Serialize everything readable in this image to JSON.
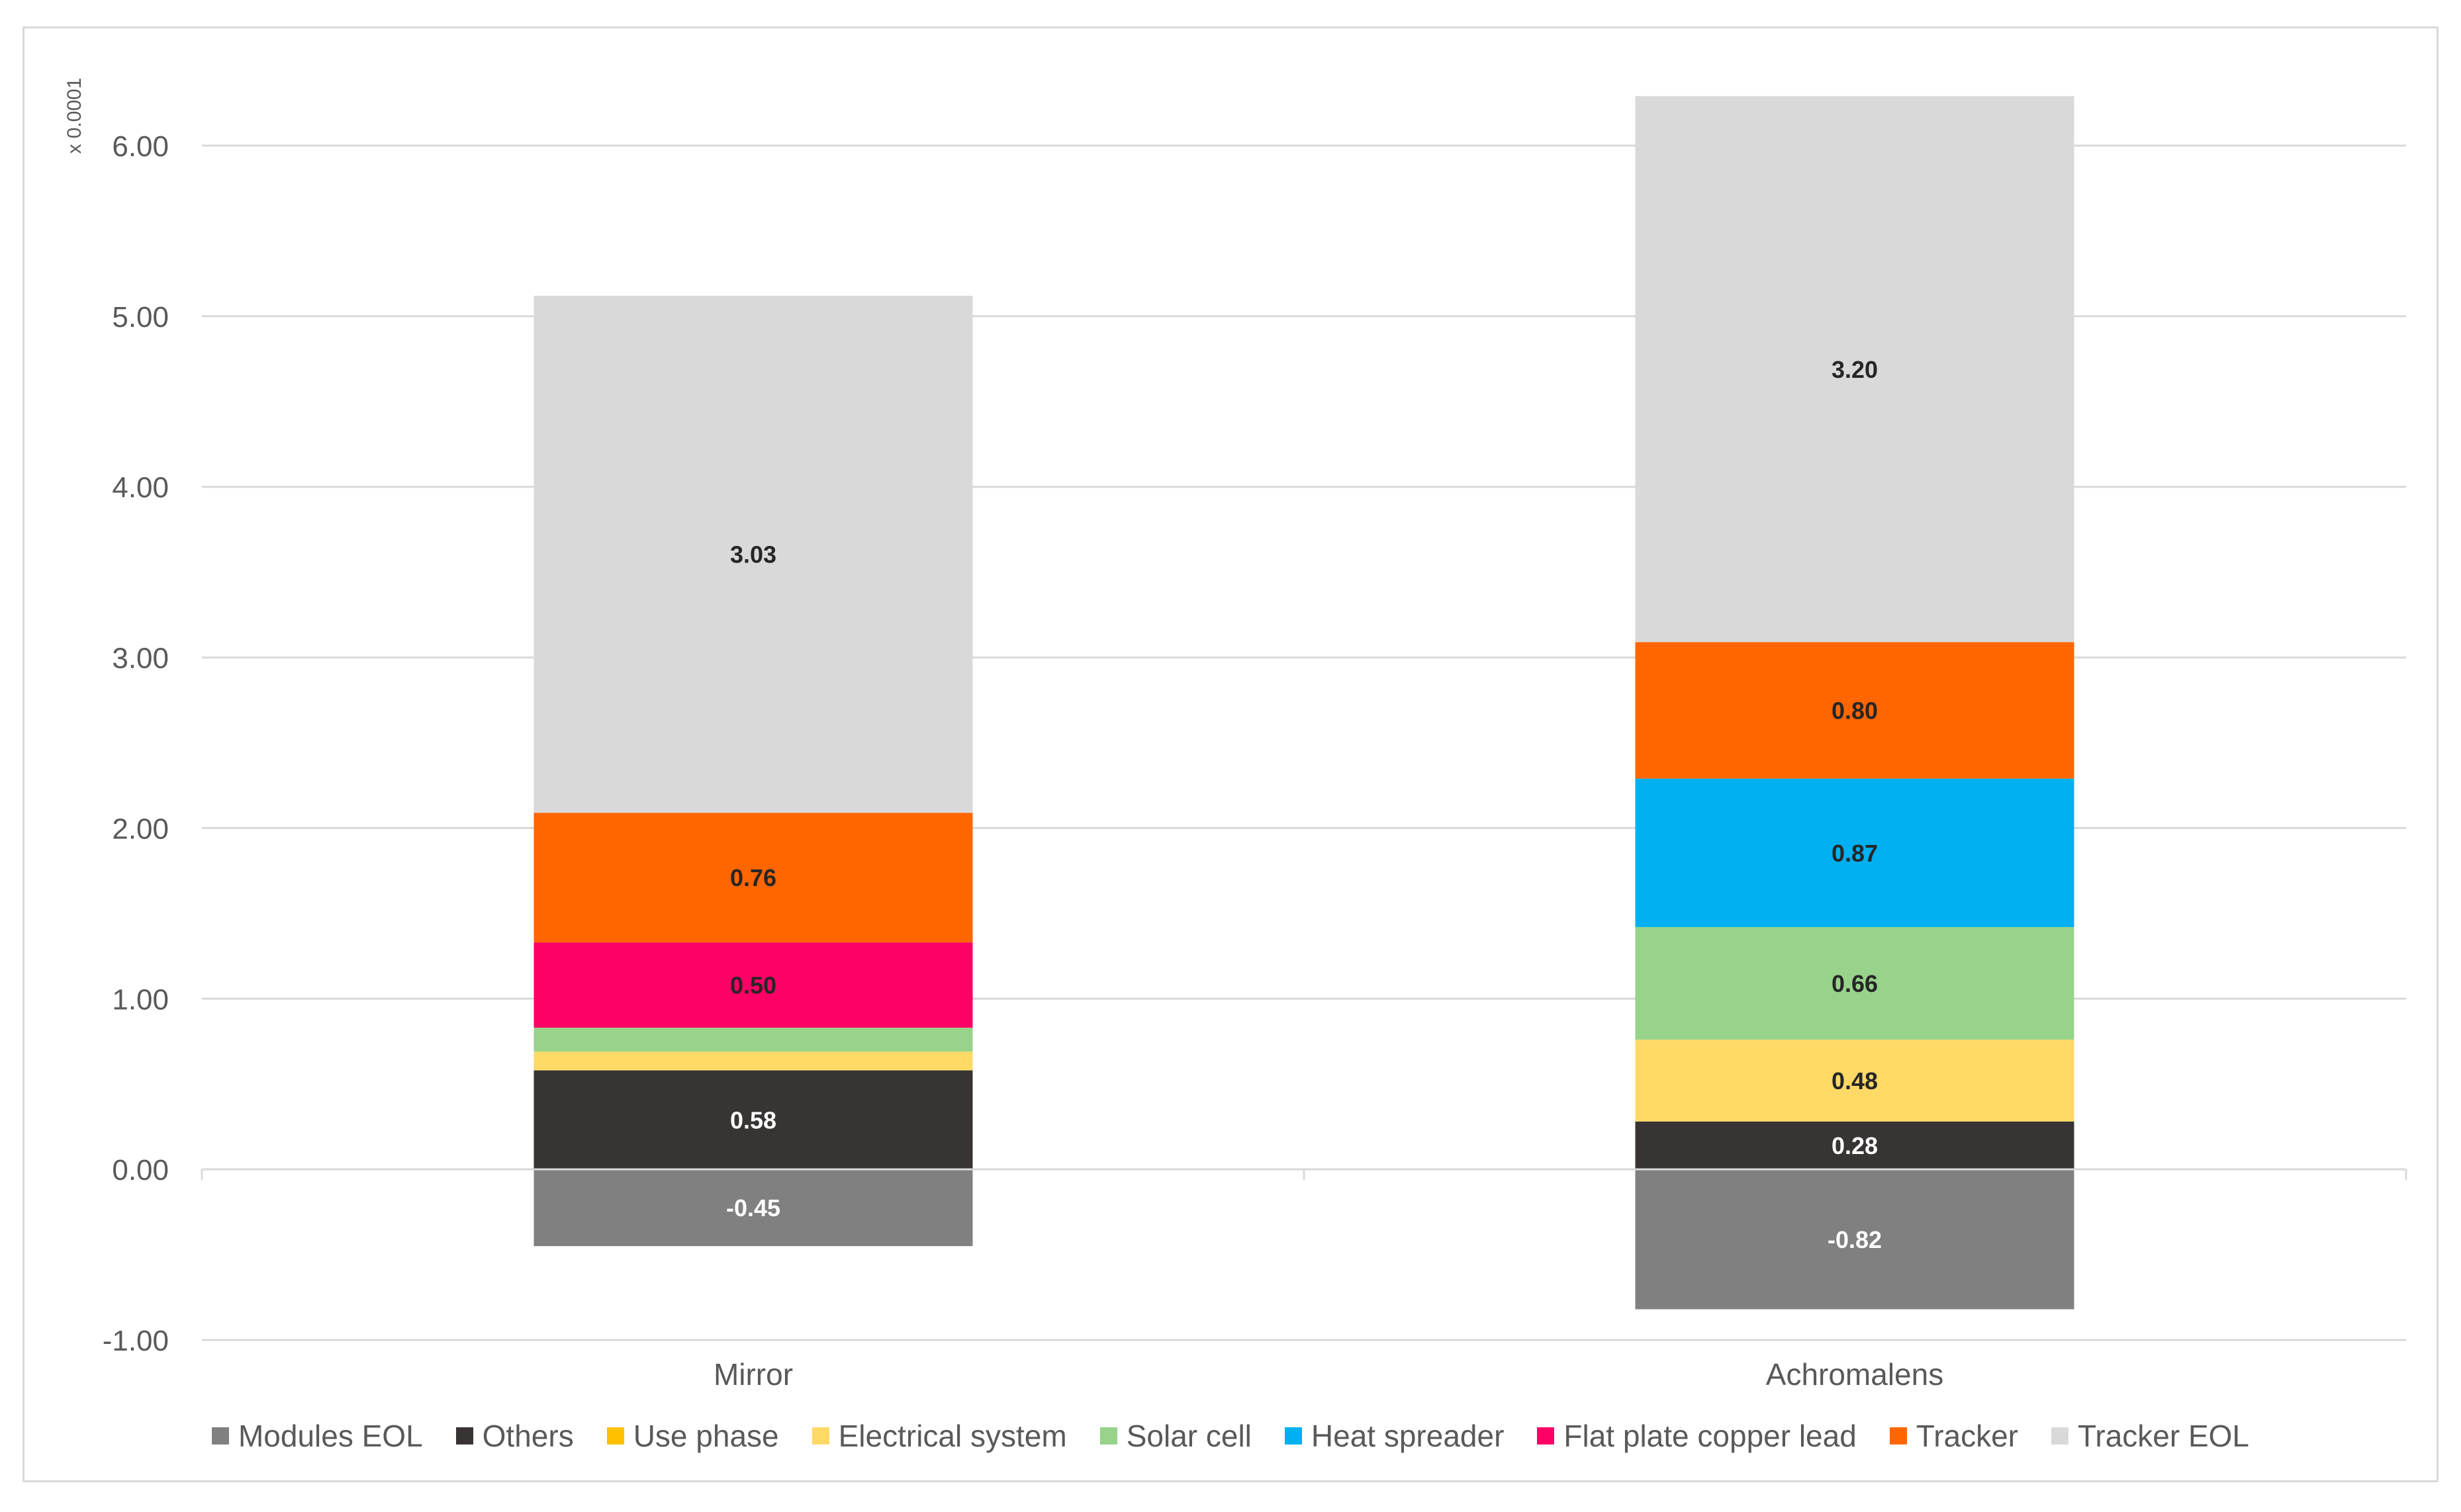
{
  "chart_data": {
    "type": "bar",
    "stacked": true,
    "title": "",
    "xlabel": "",
    "ylabel": "",
    "unit_label": "x 0.0001",
    "categories": [
      "Mirror",
      "Achromalens"
    ],
    "ylim": [
      -1.0,
      6.5
    ],
    "yticks": [
      -1.0,
      0.0,
      1.0,
      2.0,
      3.0,
      4.0,
      5.0,
      6.0
    ],
    "ytick_labels": [
      "-1.00",
      "0.00",
      "1.00",
      "2.00",
      "3.00",
      "4.00",
      "5.00",
      "6.00"
    ],
    "grid": true,
    "legend_position": "bottom",
    "series": [
      {
        "name": "Modules EOL",
        "color": "#808080",
        "values": [
          -0.45,
          -0.82
        ],
        "labels": [
          "-0.45",
          "-0.82"
        ],
        "label_color": "#ffffff"
      },
      {
        "name": "Others",
        "color": "#383434",
        "values": [
          0.58,
          0.28
        ],
        "labels": [
          "0.58",
          "0.28"
        ],
        "label_color": "#ffffff"
      },
      {
        "name": "Use phase",
        "color": "#ffc000",
        "values": [
          0.0,
          0.0
        ],
        "labels": [
          "",
          ""
        ],
        "label_color": "#262626"
      },
      {
        "name": "Electrical system",
        "color": "#ffd966",
        "values": [
          0.11,
          0.48
        ],
        "labels": [
          "",
          "0.48"
        ],
        "label_color": "#262626"
      },
      {
        "name": "Solar cell",
        "color": "#97d38b",
        "values": [
          0.14,
          0.66
        ],
        "labels": [
          "",
          "0.66"
        ],
        "label_color": "#262626"
      },
      {
        "name": "Heat spreader",
        "color": "#00b0f0",
        "values": [
          0.0,
          0.87
        ],
        "labels": [
          "",
          "0.87"
        ],
        "label_color": "#262626"
      },
      {
        "name": "Flat plate copper lead",
        "color": "#ff0066",
        "values": [
          0.5,
          0.0
        ],
        "labels": [
          "0.50",
          ""
        ],
        "label_color": "#262626"
      },
      {
        "name": "Tracker",
        "color": "#ff6600",
        "values": [
          0.76,
          0.8
        ],
        "labels": [
          "0.76",
          "0.80"
        ],
        "label_color": "#262626"
      },
      {
        "name": "Tracker EOL",
        "color": "#d9d9d9",
        "values": [
          3.03,
          3.2
        ],
        "labels": [
          "3.03",
          "3.20"
        ],
        "label_color": "#262626"
      }
    ]
  }
}
